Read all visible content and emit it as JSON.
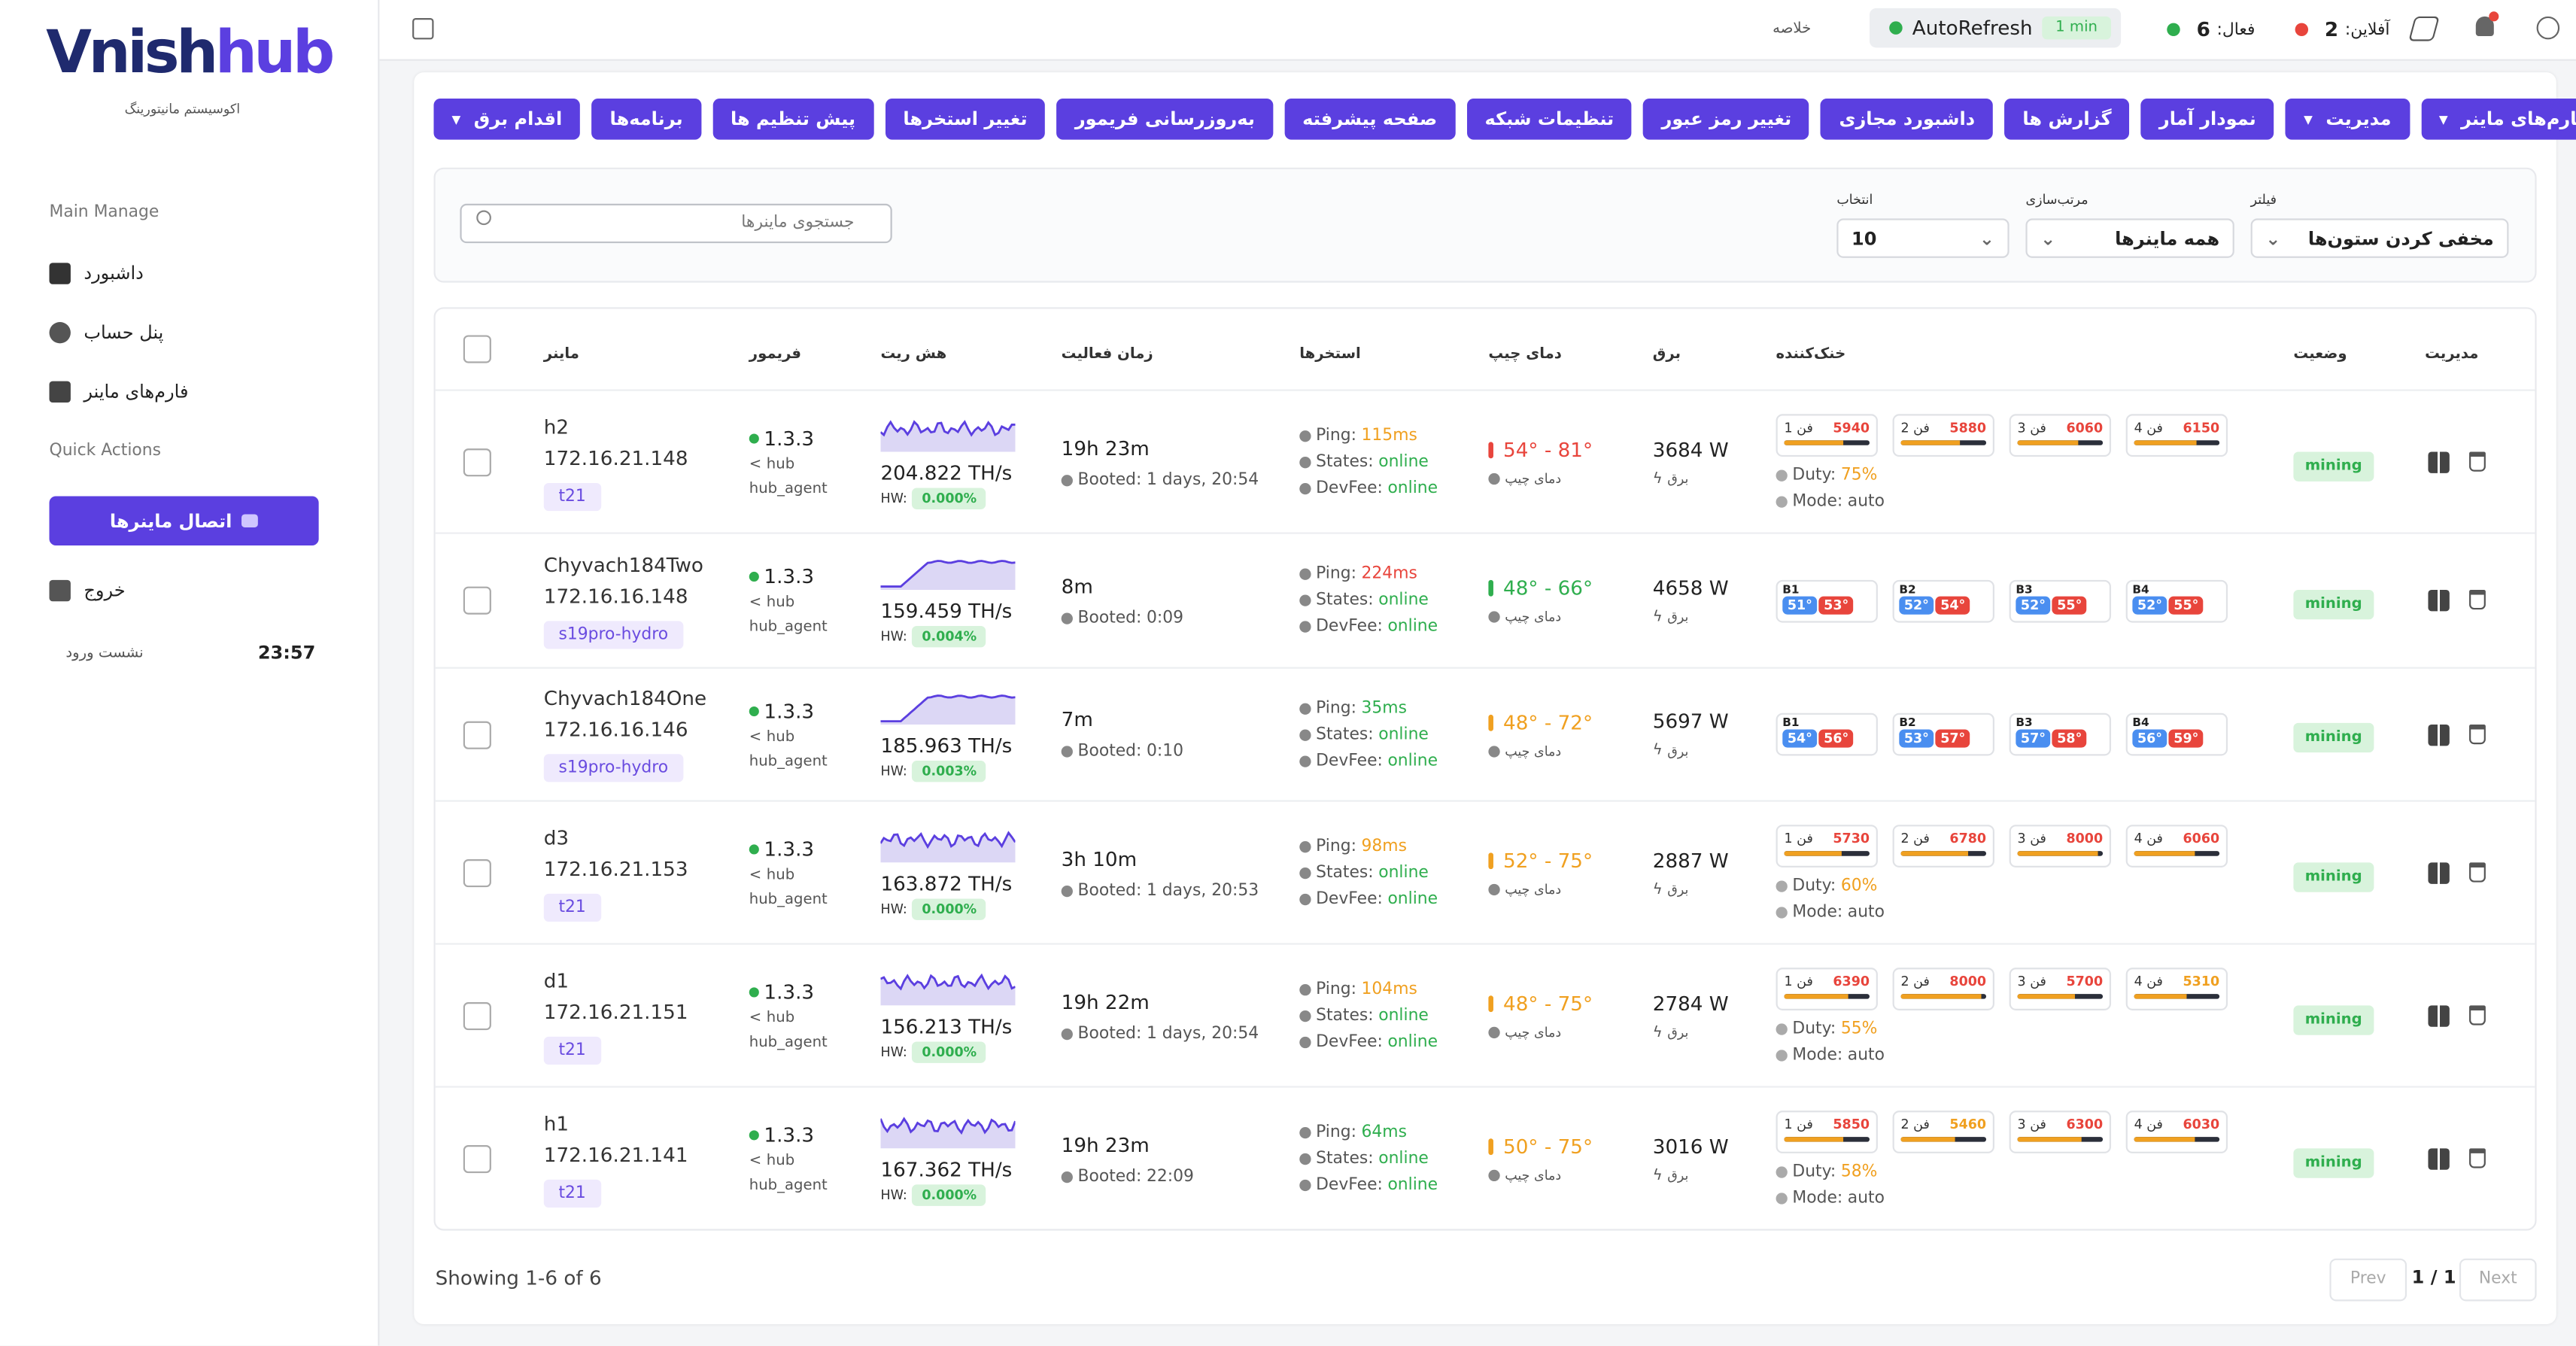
{
  "sidebar": {
    "logo_a": "Vnish",
    "logo_b": "hub",
    "tagline": "اکوسیستم مانیتورینگ",
    "section_main": "Main Manage",
    "nav": [
      "داشبورد",
      "پنل حساب",
      "فارم‌های ماینر"
    ],
    "section_quick": "Quick Actions",
    "connect": "اتصال ماینرها",
    "logout": "خروج",
    "session_label": "نشست ورود",
    "session_time": "23:57"
  },
  "topbar": {
    "summary": "خلاصه",
    "autorefresh": "AutoRefresh",
    "interval": "1 min",
    "active_label": "فعال:",
    "active_count": 6,
    "offline_label": "آفلاین:",
    "offline_count": 2
  },
  "toolbar": {
    "buttons": [
      "فارم‌های ماینر",
      "مدیریت",
      "نمودار آمار",
      "گزارش ها",
      "داشبورد مجازی",
      "تغییر رمز عبور",
      "تنظیمات شبکه",
      "صفحه پیشرفته",
      "به‌روزرسانی فریمور",
      "تغییر استخرها",
      "پیش تنظیم ها",
      "برنامه‌ها",
      "اقدام برق"
    ],
    "dropdowns": [
      0,
      1,
      12
    ]
  },
  "filters": {
    "search_placeholder": "جستجوی ماینرها",
    "filter_label": "فیلتر",
    "filter_value": "مخفی کردن ستون‌ها",
    "sort_label": "مرتب‌سازی",
    "sort_value": "همه ماینرها",
    "select_label": "انتخاب",
    "select_value": "10"
  },
  "table": {
    "headers": [
      "ماینر",
      "فریمور",
      "هش ریت",
      "زمان فعالیت",
      "استخرها",
      "دمای چیپ",
      "برق",
      "خنک‌کننده",
      "وضعیت",
      "مدیریت"
    ],
    "labels": {
      "hw": "HW:",
      "booted": "Booted:",
      "ping": "Ping:",
      "states": "States:",
      "devfee": "DevFee:",
      "duty": "Duty:",
      "mode": "Mode:",
      "chip_temp": "دمای چیپ",
      "power": "برق",
      "fans": [
        "فن 1",
        "فن 2",
        "فن 3",
        "فن 4"
      ],
      "boards": [
        "B1",
        "B2",
        "B3",
        "B4"
      ]
    },
    "rows": [
      {
        "name": "h2",
        "ip": "172.16.21.148",
        "tag": "t21",
        "firmware": "1.3.3",
        "source": "hub",
        "agent": "hub_agent",
        "hashrate": "204.822 TH/s",
        "hw": "0.000%",
        "uptime": "19h 23m",
        "booted": "1 days, 20:54",
        "ping": "115ms",
        "ping_color": "#f0a020",
        "states": "online",
        "devfee": "online",
        "temp": "54° - 81°",
        "temp_color": "#e8453c",
        "power": "3684 W",
        "fans": [
          5940,
          5880,
          6060,
          6150
        ],
        "duty": "75%",
        "mode": "auto",
        "status": "mining"
      },
      {
        "name": "Chyvach184Two",
        "ip": "172.16.16.148",
        "tag": "s19pro-hydro",
        "firmware": "1.3.3",
        "source": "hub",
        "agent": "hub_agent",
        "hashrate": "159.459 TH/s",
        "hw": "0.004%",
        "uptime": "8m",
        "booted": "0:09",
        "ping": "224ms",
        "ping_color": "#e8453c",
        "states": "online",
        "devfee": "online",
        "temp": "48° - 66°",
        "temp_color": "#2fae4e",
        "power": "4658 W",
        "boards": [
          [
            "51°",
            "53°"
          ],
          [
            "52°",
            "54°"
          ],
          [
            "52°",
            "55°"
          ],
          [
            "52°",
            "55°"
          ]
        ],
        "status": "mining"
      },
      {
        "name": "Chyvach184One",
        "ip": "172.16.16.146",
        "tag": "s19pro-hydro",
        "firmware": "1.3.3",
        "source": "hub",
        "agent": "hub_agent",
        "hashrate": "185.963 TH/s",
        "hw": "0.003%",
        "uptime": "7m",
        "booted": "0:10",
        "ping": "35ms",
        "ping_color": "#2fae4e",
        "states": "online",
        "devfee": "online",
        "temp": "48° - 72°",
        "temp_color": "#f0a020",
        "power": "5697 W",
        "boards": [
          [
            "54°",
            "56°"
          ],
          [
            "53°",
            "57°"
          ],
          [
            "57°",
            "58°"
          ],
          [
            "56°",
            "59°"
          ]
        ],
        "status": "mining"
      },
      {
        "name": "d3",
        "ip": "172.16.21.153",
        "tag": "t21",
        "firmware": "1.3.3",
        "source": "hub",
        "agent": "hub_agent",
        "hashrate": "163.872 TH/s",
        "hw": "0.000%",
        "uptime": "3h 10m",
        "booted": "1 days, 20:53",
        "ping": "98ms",
        "ping_color": "#f0a020",
        "states": "online",
        "devfee": "online",
        "temp": "52° - 75°",
        "temp_color": "#f0a020",
        "power": "2887 W",
        "fans": [
          5730,
          6780,
          8000,
          6060
        ],
        "duty": "60%",
        "mode": "auto",
        "status": "mining"
      },
      {
        "name": "d1",
        "ip": "172.16.21.151",
        "tag": "t21",
        "firmware": "1.3.3",
        "source": "hub",
        "agent": "hub_agent",
        "hashrate": "156.213 TH/s",
        "hw": "0.000%",
        "uptime": "19h 22m",
        "booted": "1 days, 20:54",
        "ping": "104ms",
        "ping_color": "#f0a020",
        "states": "online",
        "devfee": "online",
        "temp": "48° - 75°",
        "temp_color": "#f0a020",
        "power": "2784 W",
        "fans": [
          6390,
          8000,
          5700,
          5310
        ],
        "duty": "55%",
        "mode": "auto",
        "status": "mining"
      },
      {
        "name": "h1",
        "ip": "172.16.21.141",
        "tag": "t21",
        "firmware": "1.3.3",
        "source": "hub",
        "agent": "hub_agent",
        "hashrate": "167.362 TH/s",
        "hw": "0.000%",
        "uptime": "19h 23m",
        "booted": "22:09",
        "ping": "64ms",
        "ping_color": "#2fae4e",
        "states": "online",
        "devfee": "online",
        "temp": "50° - 75°",
        "temp_color": "#f0a020",
        "power": "3016 W",
        "fans": [
          5850,
          5460,
          6300,
          6030
        ],
        "duty": "58%",
        "mode": "auto",
        "status": "mining"
      }
    ]
  },
  "footer": {
    "showing": "Showing 1-6 of 6",
    "prev": "Prev",
    "page": "1 / 1",
    "next": "Next"
  }
}
